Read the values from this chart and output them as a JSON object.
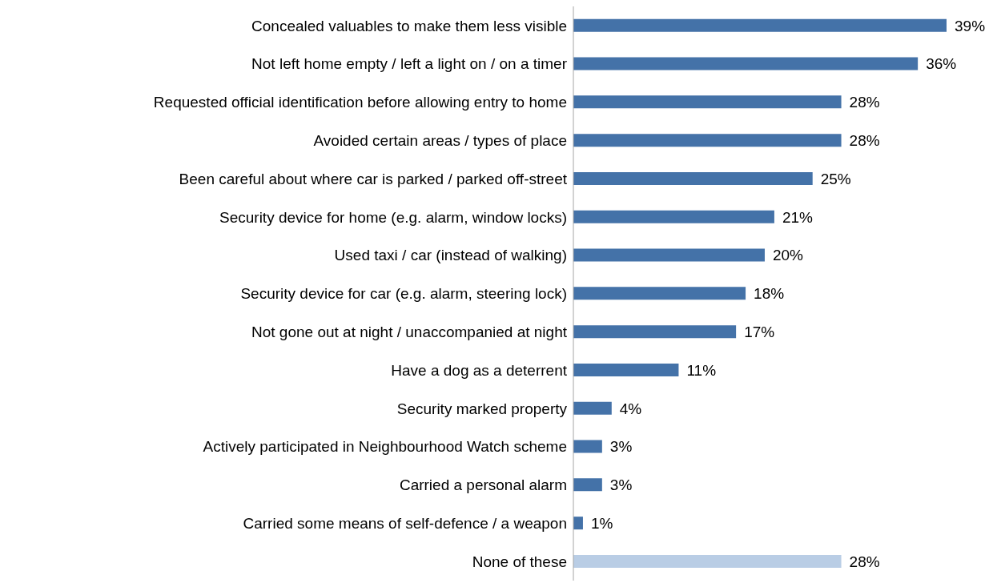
{
  "chart_data": {
    "type": "bar",
    "orientation": "horizontal",
    "categories": [
      "Concealed valuables to make them less visible",
      "Not left home empty / left a light on / on a timer",
      "Requested official identification before allowing entry to home",
      "Avoided certain areas / types of place",
      "Been careful about where car is parked / parked off-street",
      "Security device for home (e.g. alarm, window locks)",
      "Used taxi / car (instead of walking)",
      "Security device for car (e.g. alarm, steering lock)",
      "Not gone out at night / unaccompanied at night",
      "Have a dog as a deterrent",
      "Security marked property",
      "Actively participated in Neighbourhood Watch scheme",
      "Carried a personal alarm",
      "Carried some means of self-defence / a weapon",
      "None of these"
    ],
    "values": [
      39,
      36,
      28,
      28,
      25,
      21,
      20,
      18,
      17,
      11,
      4,
      3,
      3,
      1,
      28
    ],
    "value_labels": [
      "39%",
      "36%",
      "28%",
      "28%",
      "25%",
      "21%",
      "20%",
      "18%",
      "17%",
      "11%",
      "4%",
      "3%",
      "3%",
      "1%",
      "28%"
    ],
    "colors": [
      "#4472a8",
      "#4472a8",
      "#4472a8",
      "#4472a8",
      "#4472a8",
      "#4472a8",
      "#4472a8",
      "#4472a8",
      "#4472a8",
      "#4472a8",
      "#4472a8",
      "#4472a8",
      "#4472a8",
      "#4472a8",
      "#b9cde5"
    ]
  }
}
